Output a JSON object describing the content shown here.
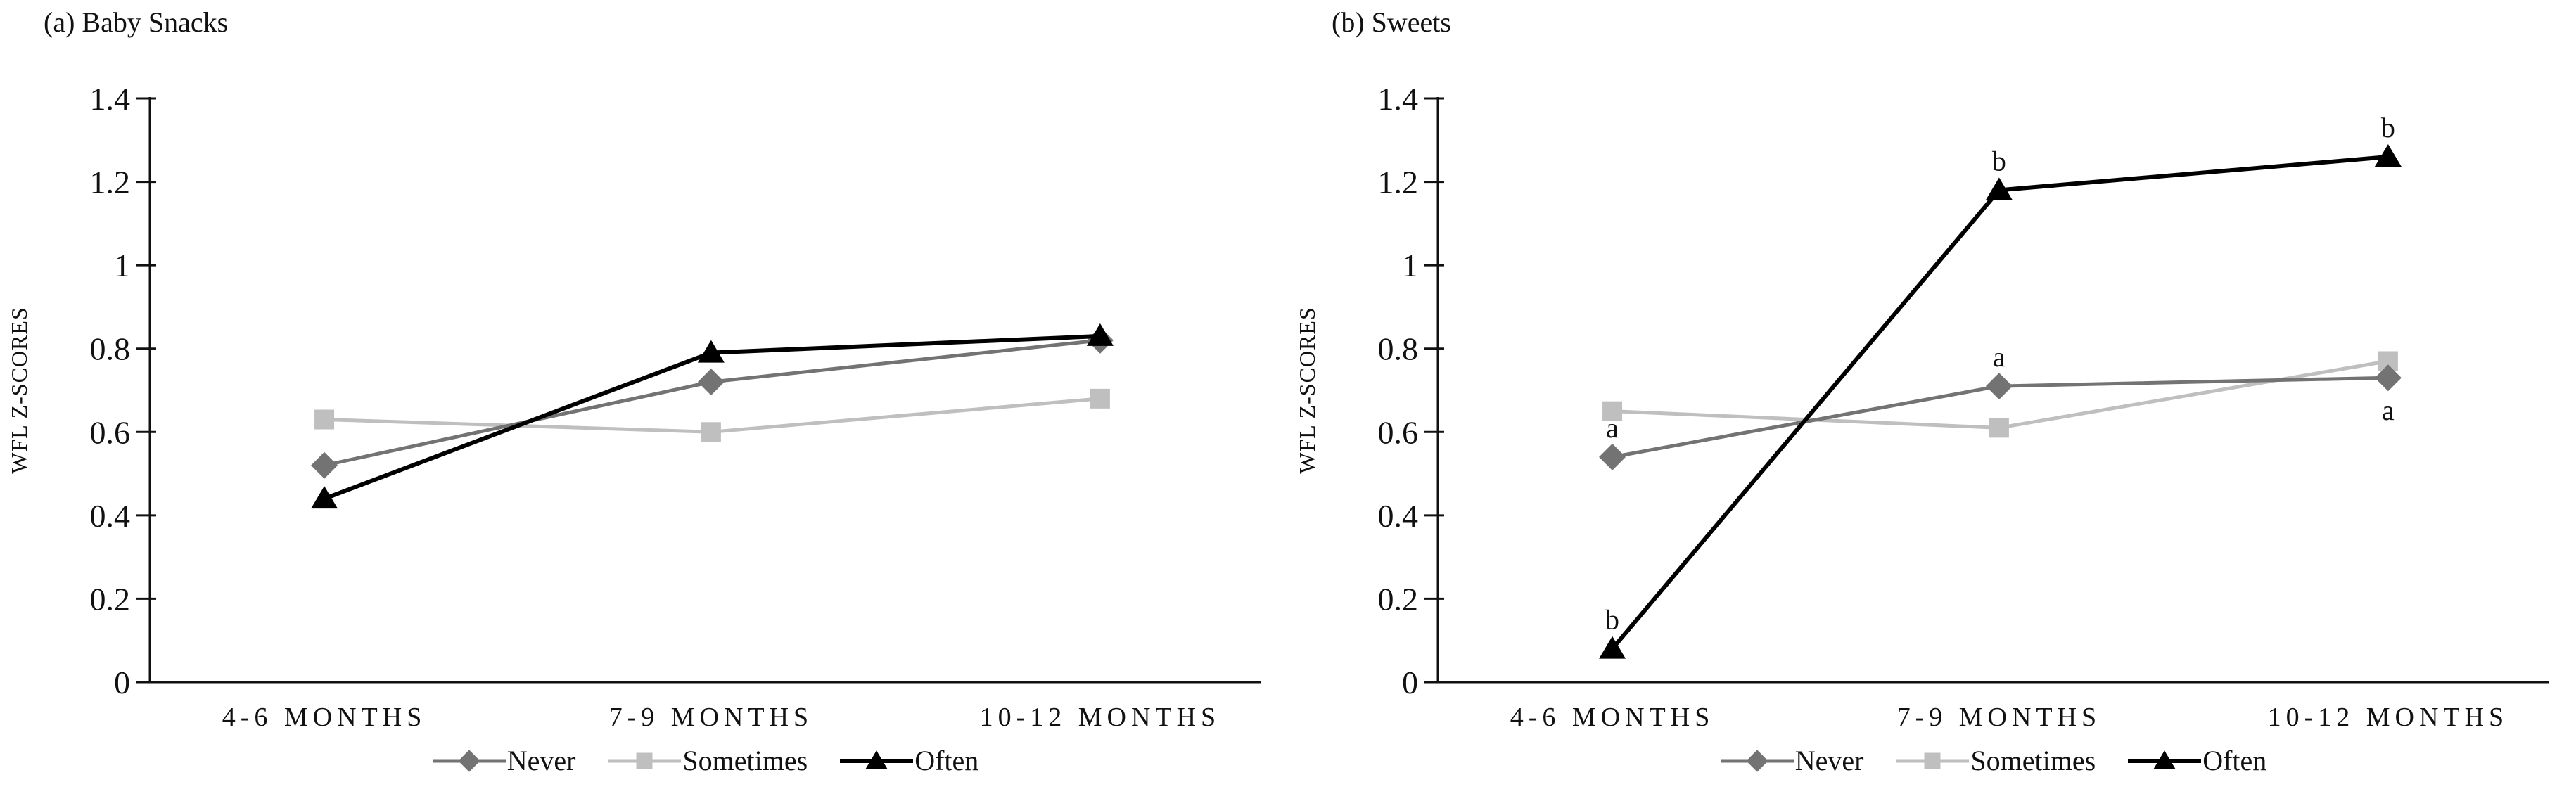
{
  "figure": {
    "panels": [
      {
        "title": "(a) Baby Snacks"
      },
      {
        "title": "(b) Sweets"
      }
    ]
  },
  "chart_data": [
    {
      "type": "line",
      "title": "(a) Baby Snacks",
      "categories": [
        "4-6 MONTHS",
        "7-9 MONTHS",
        "10-12 MONTHS"
      ],
      "ylabel": "WFL Z-SCORES",
      "ylim": [
        0,
        1.4
      ],
      "ytick_step": 0.2,
      "grid": false,
      "legend_position": "bottom",
      "draw_order": [
        1,
        0,
        2
      ],
      "series": [
        {
          "name": "Never",
          "marker": "diamond",
          "color": "#737373",
          "line_width": 5,
          "values": [
            0.52,
            0.72,
            0.82
          ],
          "point_labels": [
            null,
            null,
            null
          ]
        },
        {
          "name": "Sometimes",
          "marker": "square",
          "color": "#BFBFBF",
          "line_width": 5,
          "values": [
            0.63,
            0.6,
            0.68
          ],
          "point_labels": [
            null,
            null,
            null
          ]
        },
        {
          "name": "Often",
          "marker": "triangle",
          "color": "#000000",
          "line_width": 6,
          "values": [
            0.44,
            0.79,
            0.83
          ],
          "point_labels": [
            null,
            null,
            null
          ]
        }
      ]
    },
    {
      "type": "line",
      "title": "(b) Sweets",
      "categories": [
        "4-6 MONTHS",
        "7-9 MONTHS",
        "10-12 MONTHS"
      ],
      "ylabel": "WFL Z-SCORES",
      "ylim": [
        0,
        1.4
      ],
      "ytick_step": 0.2,
      "grid": false,
      "legend_position": "bottom",
      "draw_order": [
        1,
        0,
        2
      ],
      "series": [
        {
          "name": "Never",
          "marker": "diamond",
          "color": "#737373",
          "line_width": 5,
          "values": [
            0.54,
            0.71,
            0.73
          ],
          "point_labels": [
            {
              "text": "a",
              "pos": "above"
            },
            {
              "text": "a",
              "pos": "above"
            },
            {
              "text": "a",
              "pos": "below"
            }
          ]
        },
        {
          "name": "Sometimes",
          "marker": "square",
          "color": "#BFBFBF",
          "line_width": 5,
          "values": [
            0.65,
            0.61,
            0.77
          ],
          "point_labels": [
            null,
            null,
            null
          ]
        },
        {
          "name": "Often",
          "marker": "triangle",
          "color": "#000000",
          "line_width": 6,
          "values": [
            0.08,
            1.18,
            1.26
          ],
          "point_labels": [
            {
              "text": "b",
              "pos": "above"
            },
            {
              "text": "b",
              "pos": "above"
            },
            {
              "text": "b",
              "pos": "above"
            }
          ]
        }
      ]
    }
  ]
}
